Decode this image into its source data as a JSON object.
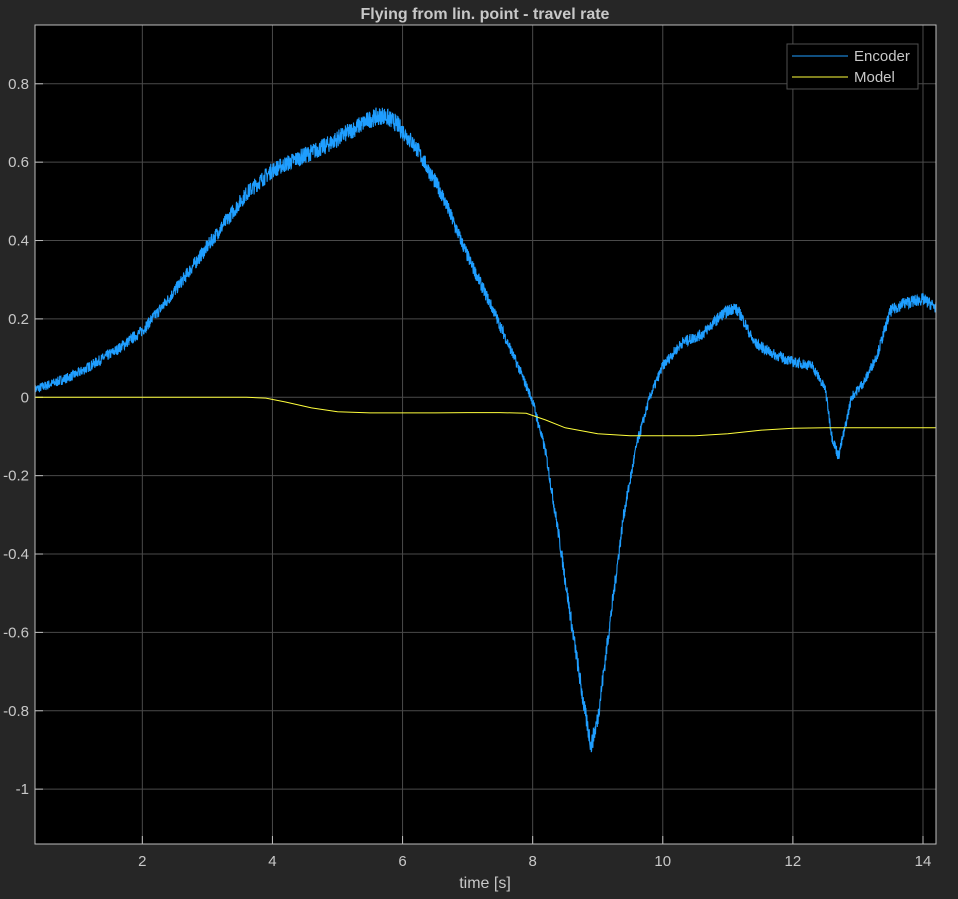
{
  "chart_data": {
    "type": "line",
    "title": "Flying from lin. point - travel rate",
    "xlabel": "time [s]",
    "ylabel": "",
    "xlim": [
      0.35,
      14.2
    ],
    "ylim": [
      -1.14,
      0.95
    ],
    "xticks": [
      2,
      4,
      6,
      8,
      10,
      12,
      14
    ],
    "xtick_labels": [
      "2",
      "4",
      "6",
      "8",
      "10",
      "12",
      "14"
    ],
    "yticks": [
      0.8,
      0.6,
      0.4,
      0.2,
      0,
      -0.2,
      -0.4,
      -0.6,
      -0.8,
      -1
    ],
    "ytick_labels": [
      "0.8",
      "0.6",
      "0.4",
      "0.2",
      "0",
      "-0.2",
      "-0.4",
      "-0.6",
      "-0.8",
      "-1"
    ],
    "grid": true,
    "legend_position": "top-right",
    "colors": {
      "background": "#000000",
      "figure": "#262626",
      "grid": "#4a4a4a",
      "axis_text": "#c8c8c8",
      "encoder": "#1f9eff",
      "model": "#ffff3c"
    },
    "series": [
      {
        "name": "Encoder",
        "x": [
          0.35,
          0.7,
          1.0,
          1.3,
          1.6,
          2.0,
          2.4,
          2.8,
          3.2,
          3.6,
          4.0,
          4.4,
          4.8,
          5.2,
          5.5,
          5.7,
          5.9,
          6.2,
          6.6,
          7.0,
          7.4,
          7.8,
          8.0,
          8.2,
          8.4,
          8.6,
          8.8,
          8.9,
          9.0,
          9.2,
          9.4,
          9.6,
          9.8,
          10.0,
          10.3,
          10.6,
          10.9,
          11.1,
          11.2,
          11.4,
          11.7,
          12.0,
          12.3,
          12.5,
          12.6,
          12.7,
          12.8,
          12.9,
          13.1,
          13.3,
          13.5,
          13.7,
          14.0,
          14.2
        ],
        "y": [
          0.02,
          0.04,
          0.06,
          0.09,
          0.12,
          0.17,
          0.25,
          0.34,
          0.43,
          0.52,
          0.58,
          0.61,
          0.64,
          0.68,
          0.71,
          0.72,
          0.7,
          0.64,
          0.52,
          0.36,
          0.22,
          0.07,
          -0.01,
          -0.14,
          -0.35,
          -0.58,
          -0.8,
          -0.89,
          -0.82,
          -0.56,
          -0.3,
          -0.12,
          0.0,
          0.08,
          0.14,
          0.16,
          0.21,
          0.23,
          0.21,
          0.14,
          0.11,
          0.09,
          0.08,
          0.02,
          -0.1,
          -0.15,
          -0.08,
          0.0,
          0.04,
          0.11,
          0.22,
          0.24,
          0.25,
          0.23
        ]
      },
      {
        "name": "Model",
        "x": [
          0.35,
          1.0,
          2.0,
          3.0,
          3.6,
          3.9,
          4.2,
          4.6,
          5.0,
          5.5,
          6.0,
          6.5,
          7.0,
          7.5,
          7.9,
          8.2,
          8.5,
          9.0,
          9.5,
          10.0,
          10.5,
          11.0,
          11.5,
          12.0,
          12.5,
          13.0,
          13.5,
          14.2
        ],
        "y": [
          0.0,
          0.0,
          0.0,
          0.0,
          0.0,
          -0.002,
          -0.012,
          -0.027,
          -0.037,
          -0.04,
          -0.04,
          -0.04,
          -0.039,
          -0.039,
          -0.041,
          -0.058,
          -0.078,
          -0.093,
          -0.098,
          -0.098,
          -0.098,
          -0.093,
          -0.084,
          -0.079,
          -0.078,
          -0.078,
          -0.078,
          -0.078
        ]
      }
    ]
  }
}
